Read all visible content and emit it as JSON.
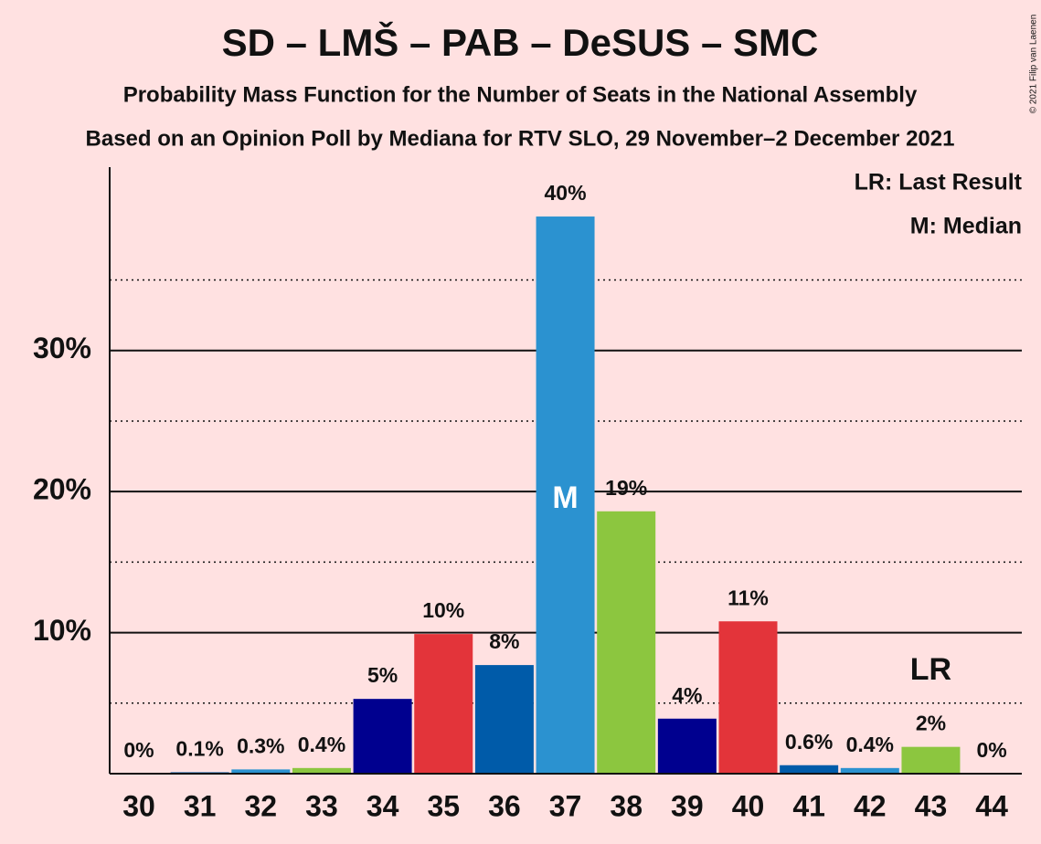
{
  "chart_data": {
    "type": "bar",
    "title": "SD – LMŠ – PAB – DeSUS – SMC",
    "subtitle": "Probability Mass Function for the Number of Seats in the National Assembly",
    "subtitle2": "Based on an Opinion Poll by Mediana for RTV SLO, 29 November–2 December 2021",
    "copyright": "© 2021 Filip van Laenen",
    "categories": [
      30,
      31,
      32,
      33,
      34,
      35,
      36,
      37,
      38,
      39,
      40,
      41,
      42,
      43,
      44
    ],
    "values": [
      0,
      0.1,
      0.3,
      0.4,
      5.3,
      9.9,
      7.7,
      39.5,
      18.6,
      3.9,
      10.8,
      0.6,
      0.4,
      1.9,
      0
    ],
    "value_labels": [
      "0%",
      "0.1%",
      "0.3%",
      "0.4%",
      "5%",
      "10%",
      "8%",
      "40%",
      "19%",
      "4%",
      "11%",
      "0.6%",
      "0.4%",
      "2%",
      "0%"
    ],
    "colors": [
      "#e3343a",
      "#005ba9",
      "#2b92d0",
      "#8cc63f",
      "#00008f",
      "#e3343a",
      "#005ba9",
      "#2b92d0",
      "#8cc63f",
      "#00008f",
      "#e3343a",
      "#005ba9",
      "#2b92d0",
      "#8cc63f",
      "#00008f"
    ],
    "ylim": [
      0,
      43
    ],
    "yticks": [
      {
        "value": 10,
        "label": "10%"
      },
      {
        "value": 20,
        "label": "20%"
      },
      {
        "value": 30,
        "label": "30%"
      }
    ],
    "minor_yticks": [
      5,
      15,
      25,
      35
    ],
    "grid": true,
    "median": {
      "category": 37,
      "label": "M"
    },
    "last_result": {
      "category": 43,
      "label": "LR"
    },
    "legend": [
      "LR: Last Result",
      "M: Median"
    ]
  }
}
